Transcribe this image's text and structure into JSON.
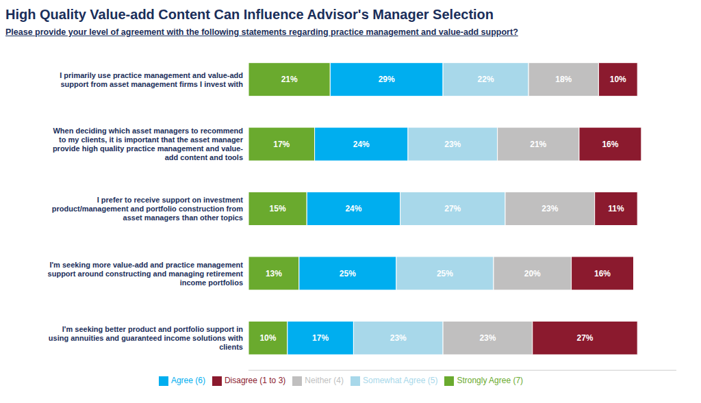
{
  "chart_data": {
    "type": "bar",
    "title": "High Quality Value-add Content Can Influence Advisor's Manager Selection",
    "subtitle": "Please provide your level of agreement with the following statements regarding practice management and value-add support?",
    "orientation": "horizontal",
    "stacked": true,
    "data_labels": true,
    "grid": false,
    "legend": "bottom",
    "tick_labels": "y",
    "xlim": [
      0,
      110
    ],
    "categories": [
      "I primarily use practice management and value-add\nsupport from asset management firms I invest with",
      "When deciding which asset managers to recommend\nto my clients, it is important that the asset manager\nprovide high quality practice management and value-\nadd content and tools",
      "I prefer to receive support on investment\nproduct/management and portfolio construction from\nasset managers than other topics",
      "I'm seeking more value-add and practice management\nsupport around constructing and managing retirement\nincome portfolios",
      "I'm seeking better product and portfolio support in\nusing annuities and guaranteed income solutions with\nclients"
    ],
    "series": [
      {
        "name": "Strongly Agree (7)",
        "color": "#6aaa2e",
        "values": [
          21,
          17,
          15,
          13,
          10
        ],
        "value_labels": [
          "21%",
          "17%",
          "15%",
          "13%",
          "10%"
        ]
      },
      {
        "name": "Agree (6)",
        "color": "#00aeef",
        "values": [
          29,
          24,
          24,
          25,
          17
        ],
        "value_labels": [
          "29%",
          "24%",
          "24%",
          "25%",
          "17%"
        ]
      },
      {
        "name": "Somewhat Agree (5)",
        "color": "#a8d8ea",
        "values": [
          22,
          23,
          27,
          25,
          23
        ],
        "value_labels": [
          "22%",
          "23%",
          "27%",
          "25%",
          "23%"
        ]
      },
      {
        "name": "Neither (4)",
        "color": "#c0bfbf",
        "values": [
          18,
          21,
          23,
          20,
          23
        ],
        "value_labels": [
          "18%",
          "21%",
          "23%",
          "20%",
          "23%"
        ]
      },
      {
        "name": "Disagree (1 to 3)",
        "color": "#8b1a2e",
        "values": [
          10,
          16,
          11,
          16,
          27
        ],
        "value_labels": [
          "10%",
          "16%",
          "11%",
          "16%",
          "27%"
        ]
      }
    ]
  }
}
